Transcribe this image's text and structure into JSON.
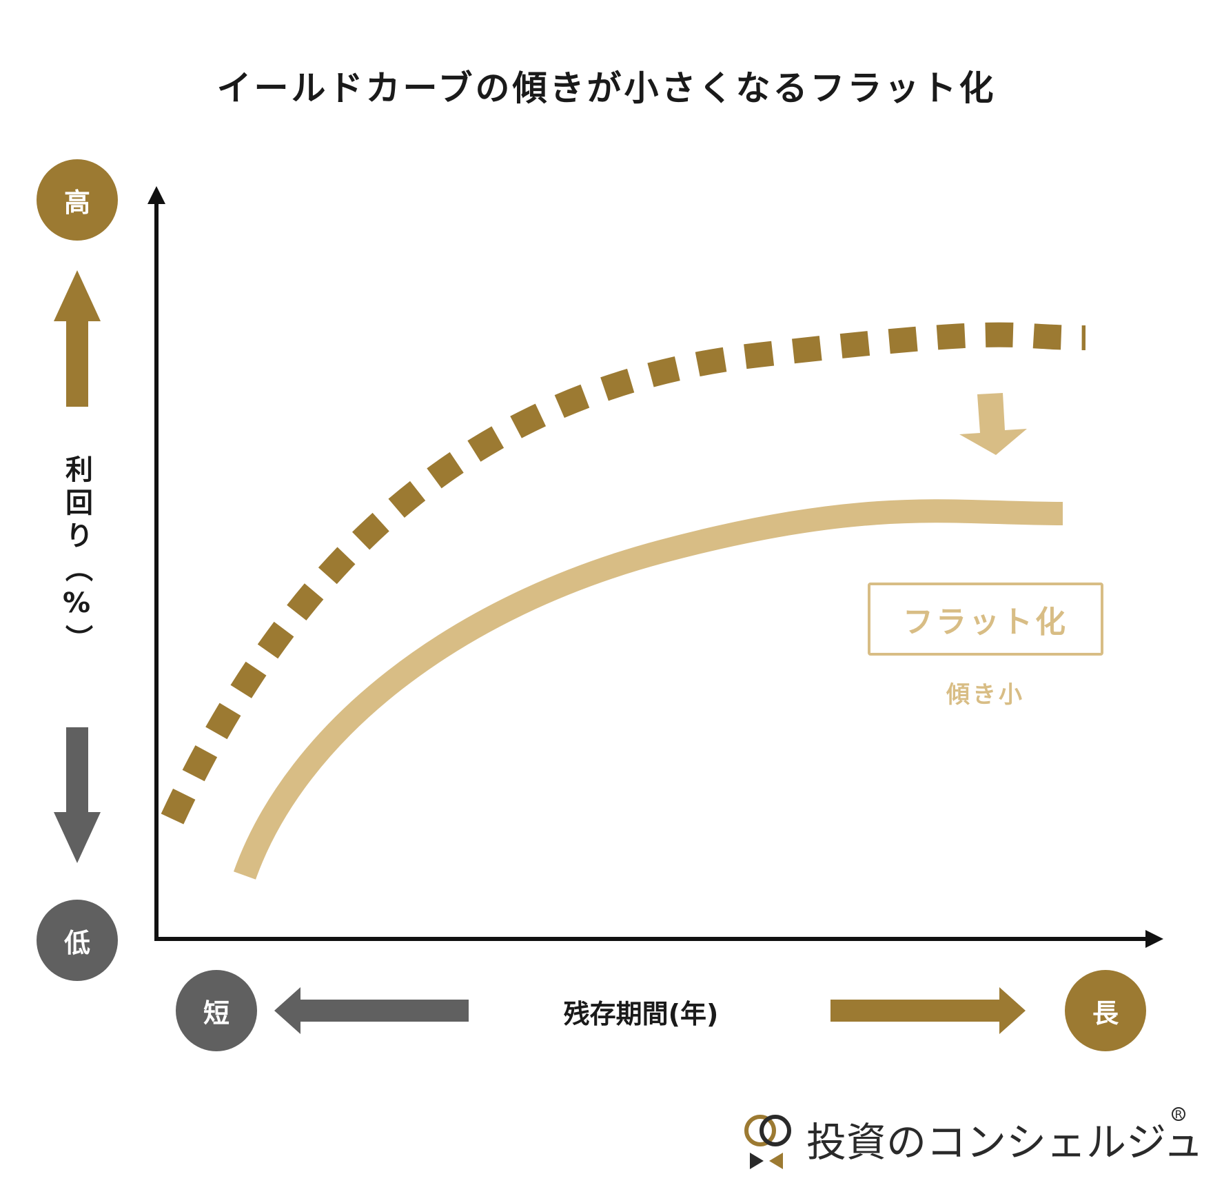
{
  "title": "イールドカーブの傾きが小さくなるフラット化",
  "y_axis": {
    "label": "利回り（%）",
    "high": "高",
    "low": "低"
  },
  "x_axis": {
    "label": "残存期間(年)",
    "short": "短",
    "long": "長"
  },
  "annotation": {
    "box_label": "フラット化",
    "sub_label": "傾き小"
  },
  "brand": {
    "name": "投資のコンシェルジュ",
    "registered": "R"
  },
  "colors": {
    "gold": "#9c7a32",
    "light_gold": "#d8bd85",
    "gray": "#606060",
    "text": "#1a1a1a"
  },
  "icons": [
    "up-arrow-icon",
    "down-arrow-icon",
    "left-arrow-icon",
    "right-arrow-icon",
    "down-shift-arrow-icon",
    "logo-rings-icon"
  ]
}
